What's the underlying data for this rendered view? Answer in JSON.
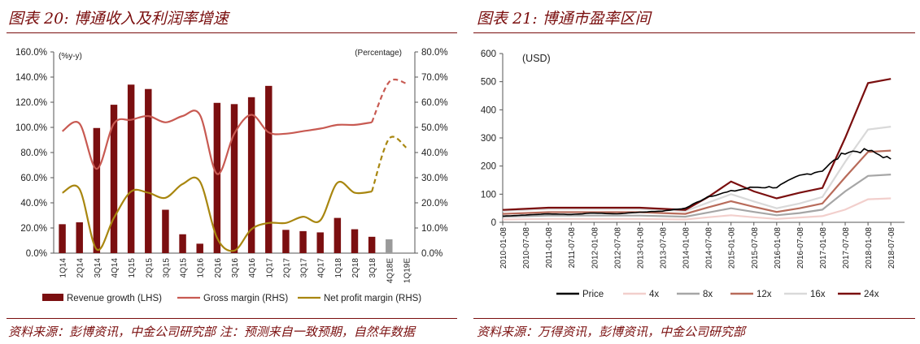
{
  "panels": {
    "left_title": "图表 20:  博通收入及利润率增速",
    "right_title": "图表 21:  博通市盈率区间",
    "left_source": "资料来源：彭博资讯，中金公司研究部   注：预测来自一致预期，自然年数据",
    "right_source": "资料来源：万得资讯，彭博资讯，中金公司研究部"
  },
  "colors": {
    "title": "#7a0e0e",
    "revenue_bar": "#7b0f10",
    "forecast_bar": "#9a9a9a",
    "gross_margin": "#c85a52",
    "net_margin": "#a8860f",
    "price": "#000000",
    "pe4": "#f2cfcc",
    "pe8": "#a6a6a6",
    "pe12": "#b86b5a",
    "pe16": "#d9d9d9",
    "pe24": "#7a0e0e"
  },
  "chart_data": [
    {
      "type": "bar",
      "title": "博通收入及利润率增速",
      "unit_label_left": "(%y-y)",
      "unit_label_right": "(Percentage)",
      "categories": [
        "1Q14",
        "2Q14",
        "3Q14",
        "4Q14",
        "1Q15",
        "2Q15",
        "3Q15",
        "4Q15",
        "1Q16",
        "2Q16",
        "3Q16",
        "4Q16",
        "1Q17",
        "2Q17",
        "3Q17",
        "4Q17",
        "1Q18",
        "2Q18",
        "3Q18",
        "4Q18E",
        "1Q19E"
      ],
      "left_ticks": [
        "0.0%",
        "20.0%",
        "40.0%",
        "60.0%",
        "80.0%",
        "100.0%",
        "120.0%",
        "140.0%",
        "160.0%"
      ],
      "right_ticks": [
        "0.0%",
        "10.0%",
        "20.0%",
        "30.0%",
        "40.0%",
        "50.0%",
        "60.0%",
        "70.0%",
        "80.0%"
      ],
      "ylim_left": [
        0,
        160
      ],
      "ylim_right": [
        0,
        80
      ],
      "series": [
        {
          "name": "Revenue growth (LHS)",
          "kind": "bar",
          "axis": "left",
          "values": [
            23,
            24.5,
            99.5,
            118,
            134,
            130.5,
            34.5,
            15,
            7.5,
            119.5,
            118.5,
            124,
            133,
            18.5,
            17.5,
            16.5,
            28,
            19,
            13,
            11,
            null
          ],
          "forecast_from_index": 19
        },
        {
          "name": "Gross margin (RHS)",
          "kind": "line",
          "axis": "right",
          "values": [
            48.5,
            51.5,
            33.5,
            51.5,
            53,
            54.5,
            52,
            54.5,
            55,
            31.5,
            47.5,
            55,
            48,
            47.5,
            48.5,
            49.5,
            51,
            51,
            52,
            68,
            67.5
          ],
          "forecast_from_index": 18
        },
        {
          "name": "Net profit margin (RHS)",
          "kind": "line",
          "axis": "right",
          "values": [
            24,
            25.5,
            1.5,
            14,
            24.5,
            24,
            22,
            27.5,
            28.5,
            6,
            1,
            9.5,
            12,
            12,
            14.5,
            13,
            28,
            24,
            24.5,
            45.5,
            42
          ],
          "forecast_from_index": 18
        }
      ],
      "legend": [
        "Revenue growth (LHS)",
        "Gross margin (RHS)",
        "Net profit margin (RHS)"
      ],
      "legend_position": "bottom"
    },
    {
      "type": "line",
      "title": "博通市盈率区间",
      "unit_label": "(USD)",
      "x": [
        "2010-01-08",
        "2010-07-08",
        "2011-01-08",
        "2011-07-08",
        "2012-01-08",
        "2012-07-08",
        "2013-01-08",
        "2013-07-08",
        "2014-01-08",
        "2014-07-08",
        "2015-01-08",
        "2015-07-08",
        "2016-01-08",
        "2016-07-08",
        "2017-01-08",
        "2017-07-08",
        "2018-01-08",
        "2018-07-08"
      ],
      "y_ticks": [
        "0",
        "100",
        "200",
        "300",
        "400",
        "500",
        "600"
      ],
      "ylim": [
        0,
        600
      ],
      "series": [
        {
          "name": "Price",
          "values": [
            22,
            26,
            30,
            28,
            33,
            30,
            36,
            40,
            50,
            92,
            110,
            125,
            125,
            165,
            185,
            250,
            255,
            225
          ]
        },
        {
          "name": "4x",
          "values": [
            10,
            11,
            12,
            12,
            12,
            12,
            12,
            11,
            10,
            18,
            25,
            18,
            12,
            17,
            22,
            45,
            82,
            85
          ]
        },
        {
          "name": "8x",
          "values": [
            20,
            22,
            24,
            24,
            24,
            24,
            24,
            22,
            20,
            35,
            50,
            37,
            25,
            33,
            45,
            110,
            165,
            170
          ]
        },
        {
          "name": "12x",
          "values": [
            30,
            33,
            36,
            36,
            36,
            36,
            36,
            33,
            30,
            53,
            75,
            55,
            37,
            50,
            67,
            160,
            250,
            255
          ]
        },
        {
          "name": "16x",
          "values": [
            40,
            44,
            48,
            48,
            48,
            48,
            48,
            44,
            40,
            70,
            100,
            74,
            50,
            67,
            90,
            215,
            330,
            340
          ]
        },
        {
          "name": "24x",
          "values": [
            44,
            48,
            52,
            52,
            52,
            52,
            52,
            48,
            44,
            90,
            145,
            110,
            85,
            105,
            122,
            300,
            495,
            510
          ]
        }
      ],
      "legend": [
        "Price",
        "4x",
        "8x",
        "12x",
        "16x",
        "24x"
      ],
      "legend_position": "bottom"
    }
  ]
}
